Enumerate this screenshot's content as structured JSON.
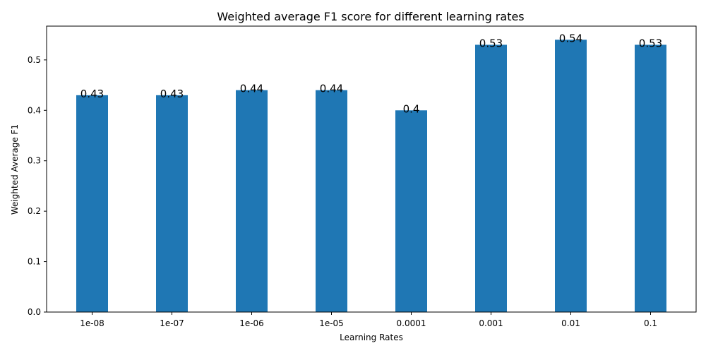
{
  "chart_data": {
    "type": "bar",
    "title": "Weighted average F1 score for different learning rates",
    "xlabel": "Learning Rates",
    "ylabel": "Weighted Average F1",
    "categories": [
      "1e-08",
      "1e-07",
      "1e-06",
      "1e-05",
      "0.0001",
      "0.001",
      "0.01",
      "0.1"
    ],
    "values": [
      0.43,
      0.43,
      0.44,
      0.44,
      0.4,
      0.53,
      0.54,
      0.53
    ],
    "data_labels": [
      "0.43",
      "0.43",
      "0.44",
      "0.44",
      "0.4",
      "0.53",
      "0.54",
      "0.53"
    ],
    "yticks": [
      "0.0",
      "0.1",
      "0.2",
      "0.3",
      "0.4",
      "0.5"
    ],
    "ylim": [
      0,
      0.567
    ],
    "grid": false,
    "bar_color": "#1f77b4"
  }
}
